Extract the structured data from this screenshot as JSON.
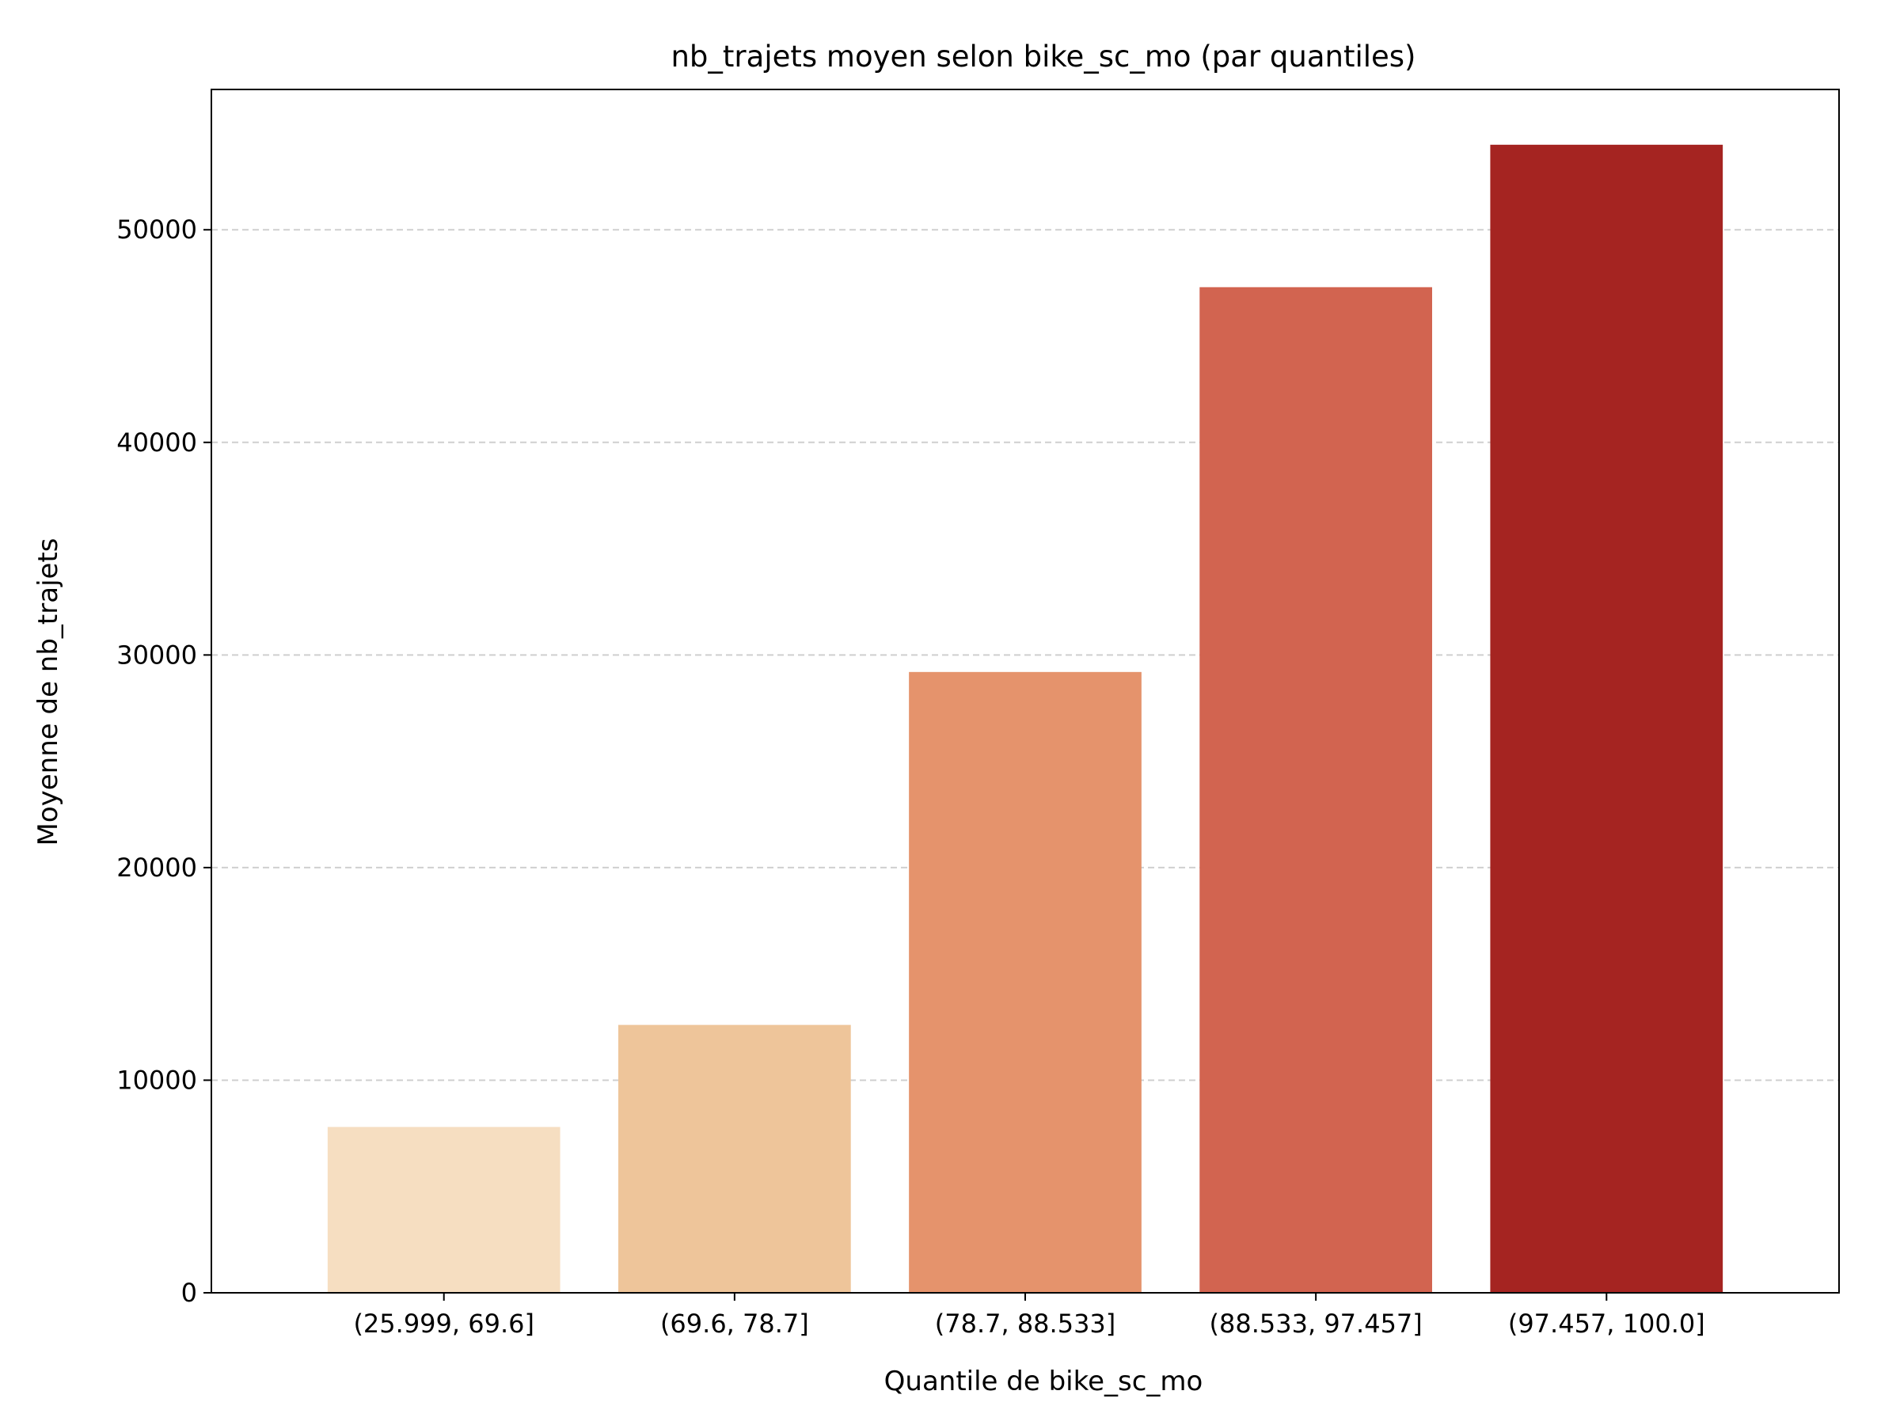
{
  "chart_data": {
    "type": "bar",
    "title": "nb_trajets moyen selon bike_sc_mo (par quantiles)",
    "xlabel": "Quantile de bike_sc_mo",
    "ylabel": "Moyenne de nb_trajets",
    "categories": [
      "(25.999, 69.6]",
      "(69.6, 78.7]",
      "(78.7, 88.533]",
      "(88.533, 97.457]",
      "(97.457, 100.0]"
    ],
    "values": [
      7800,
      12600,
      29200,
      47300,
      54000
    ],
    "colors": [
      "#f6dec1",
      "#eec59a",
      "#e5936c",
      "#d26450",
      "#a52421"
    ],
    "ylim": [
      0,
      56600
    ],
    "yticks": [
      0,
      10000,
      20000,
      30000,
      40000,
      50000
    ],
    "grid": "y-dashed",
    "legend": "none"
  }
}
